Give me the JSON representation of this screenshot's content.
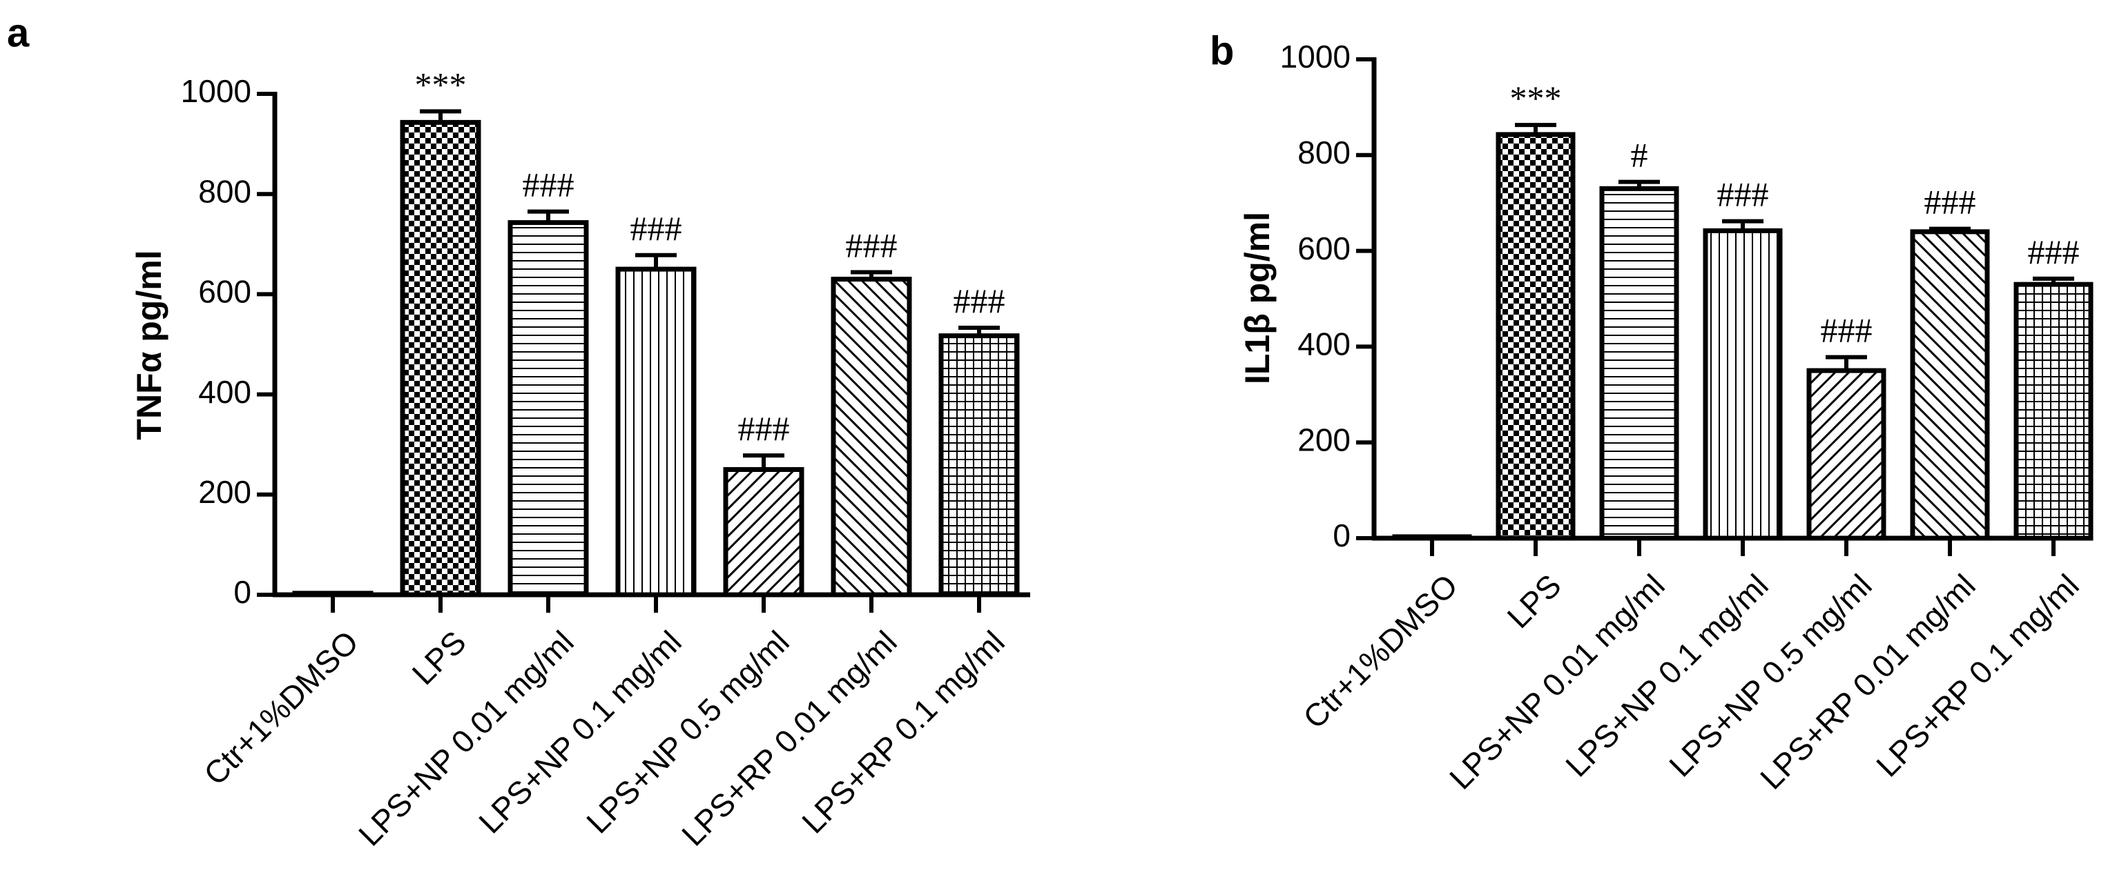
{
  "chart_data": [
    {
      "type": "bar",
      "panel_label": "a",
      "title": "",
      "xlabel": "",
      "ylabel": "TNFα pg/ml",
      "ylim": [
        0,
        1000
      ],
      "yticks": [
        "0",
        "200",
        "400",
        "600",
        "800",
        "1000"
      ],
      "grid": false,
      "categories": [
        "Ctr+1%DMSO",
        "LPS",
        "LPS+NP 0.01 mg/ml",
        "LPS+NP 0.1 mg/ml",
        "LPS+NP 0.5 mg/ml",
        "LPS+RP 0.01 mg/ml",
        "LPS+RP 0.1 mg/ml"
      ],
      "values": [
        3,
        943,
        743,
        650,
        250,
        630,
        517
      ],
      "errors": [
        0,
        22,
        22,
        28,
        28,
        14,
        16
      ],
      "patterns": [
        "none",
        "checker",
        "hlines",
        "vlines",
        "diag-up",
        "diag-down",
        "grid"
      ],
      "annotations": [
        "",
        "***",
        "###",
        "###",
        "###",
        "###",
        "###"
      ]
    },
    {
      "type": "bar",
      "panel_label": "b",
      "title": "",
      "xlabel": "",
      "ylabel": "IL1β pg/ml",
      "ylim": [
        0,
        1000
      ],
      "yticks": [
        "0",
        "200",
        "400",
        "600",
        "800",
        "1000"
      ],
      "grid": false,
      "categories": [
        "Ctr+1%DMSO",
        "LPS",
        "LPS+NP 0.01 mg/ml",
        "LPS+NP 0.1 mg/ml",
        "LPS+NP 0.5 mg/ml",
        "LPS+RP 0.01 mg/ml",
        "LPS+RP 0.1 mg/ml"
      ],
      "values": [
        3,
        843,
        730,
        642,
        350,
        640,
        530
      ],
      "errors": [
        0,
        20,
        14,
        20,
        28,
        6,
        12
      ],
      "patterns": [
        "none",
        "checker",
        "hlines",
        "vlines",
        "diag-up",
        "diag-down",
        "grid"
      ],
      "annotations": [
        "",
        "***",
        "#",
        "###",
        "###",
        "###",
        "###"
      ]
    }
  ]
}
